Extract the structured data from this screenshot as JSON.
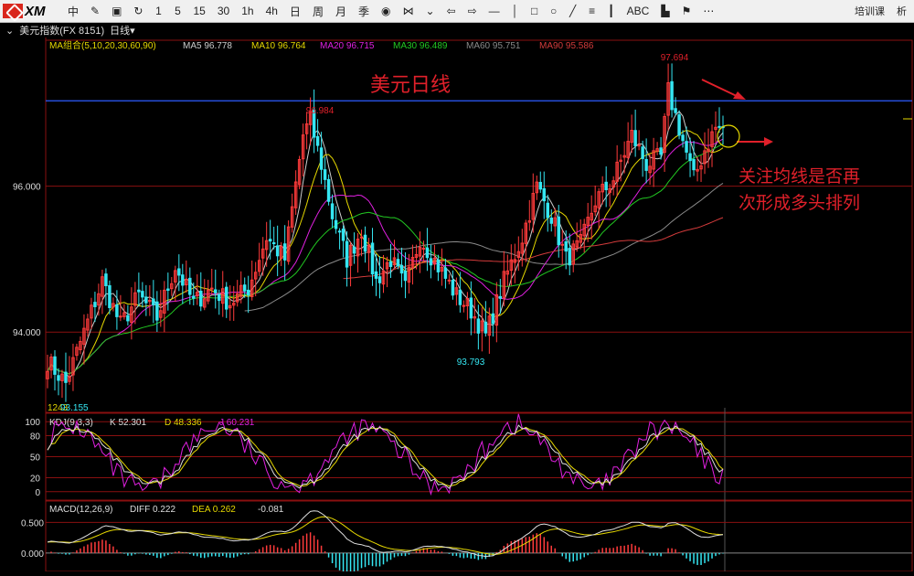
{
  "toolbar": {
    "logo_text": "XM",
    "buttons": [
      {
        "name": "chinese-char-button",
        "label": "中"
      },
      {
        "name": "draw-icon",
        "label": "✎"
      },
      {
        "name": "save-icon",
        "label": "▣"
      },
      {
        "name": "refresh-icon",
        "label": "↻"
      },
      {
        "name": "period-1m",
        "label": "1"
      },
      {
        "name": "period-5m",
        "label": "5"
      },
      {
        "name": "period-15m",
        "label": "15"
      },
      {
        "name": "period-30m",
        "label": "30"
      },
      {
        "name": "period-1h",
        "label": "1h"
      },
      {
        "name": "period-4h",
        "label": "4h"
      },
      {
        "name": "period-day",
        "label": "日"
      },
      {
        "name": "period-week",
        "label": "周"
      },
      {
        "name": "period-month",
        "label": "月"
      },
      {
        "name": "period-season",
        "label": "季"
      },
      {
        "name": "eye-icon",
        "label": "◉"
      },
      {
        "name": "split-icon",
        "label": "⋈"
      },
      {
        "name": "chevron-down-double-icon",
        "label": "⌄"
      },
      {
        "name": "arrow-left-icon",
        "label": "⇦"
      },
      {
        "name": "arrow-right-icon",
        "label": "⇨"
      },
      {
        "name": "hline-icon",
        "label": "—"
      },
      {
        "name": "vline-icon",
        "label": "│"
      },
      {
        "name": "rect-icon",
        "label": "□"
      },
      {
        "name": "ellipse-icon",
        "label": "○"
      },
      {
        "name": "trend-icon",
        "label": "╱"
      },
      {
        "name": "fib-icon",
        "label": "≡"
      },
      {
        "name": "level-icon",
        "label": "┃"
      },
      {
        "name": "text-abc-icon",
        "label": "ABC"
      },
      {
        "name": "bar-chart-icon",
        "label": "▙"
      },
      {
        "name": "flag-icon",
        "label": "⚑"
      },
      {
        "name": "more-icon",
        "label": "⋯"
      }
    ],
    "right_buttons": [
      {
        "name": "training-button",
        "label": "培训课"
      },
      {
        "name": "more-right-button",
        "label": "析"
      }
    ]
  },
  "subheader": {
    "symbol": "美元指数(FX 8151)",
    "period": "日线",
    "period_arrow": "▾"
  },
  "colors": {
    "background": "#000000",
    "grid_red": "#8a1010",
    "candle_up": "#ff3b3b",
    "candle_down": "#35e6f2",
    "ma5": "#cccccc",
    "ma10": "#e6d800",
    "ma20": "#e020e0",
    "ma30": "#22c922",
    "ma60": "#8a8a8a",
    "ma90": "#d43b3b",
    "annotation_red": "#e0202a",
    "hline_blue": "#2d5bff",
    "kdj_k": "#dddddd",
    "kdj_d": "#e6d800",
    "kdj_j": "#e020e0",
    "macd_diff": "#dddddd",
    "macd_dea": "#e6d800"
  },
  "chart_data": [
    {
      "type": "candlestick",
      "title": "美元指数(FX 8151) 日线",
      "indicator_label": "MA组合(5,10,20,30,60,90)",
      "ma_values": [
        {
          "name": "MA5",
          "value": "96.778"
        },
        {
          "name": "MA10",
          "value": "96.764"
        },
        {
          "name": "MA20",
          "value": "96.715"
        },
        {
          "name": "MA30",
          "value": "96.489"
        },
        {
          "name": "MA60",
          "value": "95.751"
        },
        {
          "name": "MA90",
          "value": "95.586"
        }
      ],
      "y_ticks": [
        "96.000",
        "94.000"
      ],
      "ylim": [
        92.9,
        98.0
      ],
      "annotations": {
        "title_text": "美元日线",
        "note_text_line1": "关注均线是否再",
        "note_text_line2": "次形成多头排列",
        "high_label": "97.694",
        "peak1_label": "96.984",
        "low_label": "93.793",
        "low_left_label": "93.155",
        "bar_count_label": "1243"
      },
      "horizontal_line_value": 97.17,
      "anchors": [
        [
          0,
          93.6
        ],
        [
          5,
          93.3
        ],
        [
          10,
          94.0
        ],
        [
          15,
          94.7
        ],
        [
          20,
          94.1
        ],
        [
          25,
          94.5
        ],
        [
          30,
          94.2
        ],
        [
          35,
          94.9
        ],
        [
          40,
          94.4
        ],
        [
          45,
          94.6
        ],
        [
          50,
          94.4
        ],
        [
          55,
          94.6
        ],
        [
          60,
          95.3
        ],
        [
          65,
          95.0
        ],
        [
          70,
          96.7
        ],
        [
          72,
          96.9
        ],
        [
          75,
          96.3
        ],
        [
          78,
          95.6
        ],
        [
          82,
          95.0
        ],
        [
          86,
          95.4
        ],
        [
          90,
          94.7
        ],
        [
          94,
          95.0
        ],
        [
          98,
          94.6
        ],
        [
          102,
          95.3
        ],
        [
          107,
          94.9
        ],
        [
          112,
          94.5
        ],
        [
          116,
          94.3
        ],
        [
          120,
          93.95
        ],
        [
          125,
          94.7
        ],
        [
          130,
          95.3
        ],
        [
          134,
          96.0
        ],
        [
          138,
          95.6
        ],
        [
          142,
          95.0
        ],
        [
          146,
          95.2
        ],
        [
          150,
          95.8
        ],
        [
          155,
          96.1
        ],
        [
          160,
          96.7
        ],
        [
          164,
          96.3
        ],
        [
          168,
          96.4
        ],
        [
          170,
          97.3
        ],
        [
          173,
          96.8
        ],
        [
          177,
          96.1
        ],
        [
          180,
          96.5
        ],
        [
          183,
          96.8
        ]
      ]
    },
    {
      "type": "line",
      "title": "KDJ(9,3,3)",
      "series": [
        {
          "name": "K",
          "value": "52.301"
        },
        {
          "name": "D",
          "value": "48.336"
        },
        {
          "name": "J",
          "value": "60.231"
        }
      ],
      "y_ticks": [
        "100",
        "80",
        "50",
        "20",
        "0"
      ],
      "ylim": [
        -12,
        112
      ]
    },
    {
      "type": "bar",
      "title": "MACD(12,26,9)",
      "series": [
        {
          "name": "DIFF",
          "value": "0.222"
        },
        {
          "name": "DEA",
          "value": "0.262"
        },
        {
          "name": "MACD",
          "value": "-0.081"
        }
      ],
      "y_ticks": [
        "0.500",
        "0.000"
      ],
      "ylim": [
        -0.3,
        0.85
      ]
    }
  ]
}
